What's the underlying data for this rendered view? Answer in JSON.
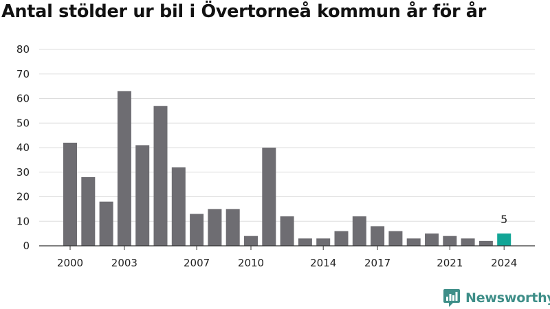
{
  "title": "Antal stölder ur bil i Övertorneå kommun år för år",
  "brand": {
    "name": "Newsworthy",
    "icon": "newsworthy-logo-icon",
    "color": "#3e8e88"
  },
  "colors": {
    "bar": "#6e6d72",
    "highlight": "#12a596",
    "grid": "#dddddd",
    "axis": "#333333"
  },
  "chart_data": {
    "type": "bar",
    "title": "Antal stölder ur bil i Övertorneå kommun år för år",
    "xlabel": "",
    "ylabel": "",
    "ylim": [
      0,
      80
    ],
    "yticks": [
      0,
      10,
      20,
      30,
      40,
      50,
      60,
      70,
      80
    ],
    "grid": true,
    "legend": "none",
    "categories": [
      "2000",
      "2001",
      "2002",
      "2003",
      "2004",
      "2005",
      "2006",
      "2007",
      "2008",
      "2009",
      "2010",
      "2011",
      "2012",
      "2013",
      "2014",
      "2015",
      "2016",
      "2017",
      "2018",
      "2019",
      "2020",
      "2021",
      "2022",
      "2023",
      "2024"
    ],
    "xtick_labels": [
      "2000",
      "2003",
      "2007",
      "2010",
      "2014",
      "2017",
      "2021",
      "2024"
    ],
    "values": [
      42,
      28,
      18,
      63,
      41,
      57,
      32,
      13,
      15,
      15,
      4,
      40,
      12,
      3,
      3,
      6,
      12,
      8,
      6,
      3,
      5,
      4,
      3,
      2,
      5
    ],
    "highlight": {
      "category": "2024",
      "label": "5"
    }
  }
}
